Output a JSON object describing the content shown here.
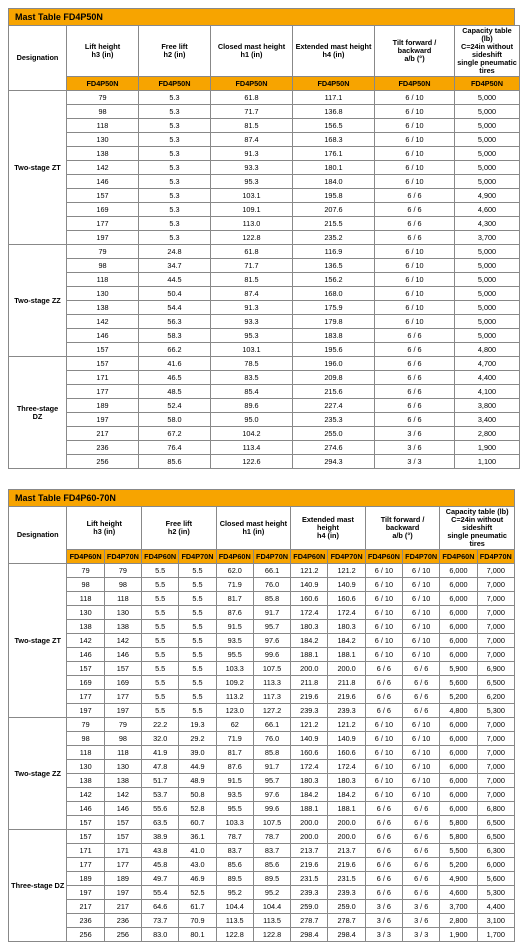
{
  "colors": {
    "accent": "#f7a400",
    "border": "#888888",
    "text": "#000000"
  },
  "table1": {
    "title": "Mast Table  FD4P50N",
    "headers": [
      "Designation",
      "Lift height\nh3 (in)",
      "Free lift\nh2 (in)",
      "Closed mast height\nh1 (in)",
      "Extended mast height\nh4 (in)",
      "Tilt forward / backward\na/b (°)",
      "Capacity table (lb)\nC=24in without sideshift\nsingle pneumatic tires"
    ],
    "model": "FD4P50N",
    "groups": [
      {
        "name": "Two-stage ZT",
        "rows": [
          [
            "79",
            "5.3",
            "61.8",
            "117.1",
            "6 / 10",
            "5,000"
          ],
          [
            "98",
            "5.3",
            "71.7",
            "136.8",
            "6 / 10",
            "5,000"
          ],
          [
            "118",
            "5.3",
            "81.5",
            "156.5",
            "6 / 10",
            "5,000"
          ],
          [
            "130",
            "5.3",
            "87.4",
            "168.3",
            "6 / 10",
            "5,000"
          ],
          [
            "138",
            "5.3",
            "91.3",
            "176.1",
            "6 / 10",
            "5,000"
          ],
          [
            "142",
            "5.3",
            "93.3",
            "180.1",
            "6 / 10",
            "5,000"
          ],
          [
            "146",
            "5.3",
            "95.3",
            "184.0",
            "6 / 10",
            "5,000"
          ],
          [
            "157",
            "5.3",
            "103.1",
            "195.8",
            "6 / 6",
            "4,900"
          ],
          [
            "169",
            "5.3",
            "109.1",
            "207.6",
            "6 / 6",
            "4,600"
          ],
          [
            "177",
            "5.3",
            "113.0",
            "215.5",
            "6 / 6",
            "4,300"
          ],
          [
            "197",
            "5.3",
            "122.8",
            "235.2",
            "6 / 6",
            "3,700"
          ]
        ]
      },
      {
        "name": "Two-stage ZZ",
        "rows": [
          [
            "79",
            "24.8",
            "61.8",
            "116.9",
            "6 / 10",
            "5,000"
          ],
          [
            "98",
            "34.7",
            "71.7",
            "136.5",
            "6 / 10",
            "5,000"
          ],
          [
            "118",
            "44.5",
            "81.5",
            "156.2",
            "6 / 10",
            "5,000"
          ],
          [
            "130",
            "50.4",
            "87.4",
            "168.0",
            "6 / 10",
            "5,000"
          ],
          [
            "138",
            "54.4",
            "91.3",
            "175.9",
            "6 / 10",
            "5,000"
          ],
          [
            "142",
            "56.3",
            "93.3",
            "179.8",
            "6 / 10",
            "5,000"
          ],
          [
            "146",
            "58.3",
            "95.3",
            "183.8",
            "6 / 6",
            "5,000"
          ],
          [
            "157",
            "66.2",
            "103.1",
            "195.6",
            "6 / 6",
            "4,800"
          ]
        ]
      },
      {
        "name": "Three-stage DZ",
        "rows": [
          [
            "157",
            "41.6",
            "78.5",
            "196.0",
            "6 / 6",
            "4,700"
          ],
          [
            "171",
            "46.5",
            "83.5",
            "209.8",
            "6 / 6",
            "4,400"
          ],
          [
            "177",
            "48.5",
            "85.4",
            "215.6",
            "6 / 6",
            "4,100"
          ],
          [
            "189",
            "52.4",
            "89.6",
            "227.4",
            "6 / 6",
            "3,800"
          ],
          [
            "197",
            "58.0",
            "95.0",
            "235.3",
            "6 / 6",
            "3,400"
          ],
          [
            "217",
            "67.2",
            "104.2",
            "255.0",
            "3 / 6",
            "2,800"
          ],
          [
            "236",
            "76.4",
            "113.4",
            "274.6",
            "3 / 6",
            "1,900"
          ],
          [
            "256",
            "85.6",
            "122.6",
            "294.3",
            "3 / 3",
            "1,100"
          ]
        ]
      }
    ]
  },
  "table2": {
    "title": "Mast Table  FD4P60-70N",
    "headers": [
      "Designation",
      "Lift height\nh3 (in)",
      "Free lift\nh2 (in)",
      "Closed mast height\nh1 (in)",
      "Extended mast height\nh4 (in)",
      "Tilt forward / backward\na/b (°)",
      "Capacity table (lb)\nC=24in without sideshift\nsingle pneumatic tires"
    ],
    "models": [
      "FD4P60N",
      "FD4P70N"
    ],
    "groups": [
      {
        "name": "Two-stage ZT",
        "rows": [
          [
            "79",
            "79",
            "5.5",
            "5.5",
            "62.0",
            "66.1",
            "121.2",
            "121.2",
            "6 / 10",
            "6 / 10",
            "6,000",
            "7,000"
          ],
          [
            "98",
            "98",
            "5.5",
            "5.5",
            "71.9",
            "76.0",
            "140.9",
            "140.9",
            "6 / 10",
            "6 / 10",
            "6,000",
            "7,000"
          ],
          [
            "118",
            "118",
            "5.5",
            "5.5",
            "81.7",
            "85.8",
            "160.6",
            "160.6",
            "6 / 10",
            "6 / 10",
            "6,000",
            "7,000"
          ],
          [
            "130",
            "130",
            "5.5",
            "5.5",
            "87.6",
            "91.7",
            "172.4",
            "172.4",
            "6 / 10",
            "6 / 10",
            "6,000",
            "7,000"
          ],
          [
            "138",
            "138",
            "5.5",
            "5.5",
            "91.5",
            "95.7",
            "180.3",
            "180.3",
            "6 / 10",
            "6 / 10",
            "6,000",
            "7,000"
          ],
          [
            "142",
            "142",
            "5.5",
            "5.5",
            "93.5",
            "97.6",
            "184.2",
            "184.2",
            "6 / 10",
            "6 / 10",
            "6,000",
            "7,000"
          ],
          [
            "146",
            "146",
            "5.5",
            "5.5",
            "95.5",
            "99.6",
            "188.1",
            "188.1",
            "6 / 10",
            "6 / 10",
            "6,000",
            "7,000"
          ],
          [
            "157",
            "157",
            "5.5",
            "5.5",
            "103.3",
            "107.5",
            "200.0",
            "200.0",
            "6 / 6",
            "6 / 6",
            "5,900",
            "6,900"
          ],
          [
            "169",
            "169",
            "5.5",
            "5.5",
            "109.2",
            "113.3",
            "211.8",
            "211.8",
            "6 / 6",
            "6 / 6",
            "5,600",
            "6,500"
          ],
          [
            "177",
            "177",
            "5.5",
            "5.5",
            "113.2",
            "117.3",
            "219.6",
            "219.6",
            "6 / 6",
            "6 / 6",
            "5,200",
            "6,200"
          ],
          [
            "197",
            "197",
            "5.5",
            "5.5",
            "123.0",
            "127.2",
            "239.3",
            "239.3",
            "6 / 6",
            "6 / 6",
            "4,800",
            "5,300"
          ]
        ]
      },
      {
        "name": "Two-stage ZZ",
        "rows": [
          [
            "79",
            "79",
            "22.2",
            "19.3",
            "62",
            "66.1",
            "121.2",
            "121.2",
            "6 / 10",
            "6 / 10",
            "6,000",
            "7,000"
          ],
          [
            "98",
            "98",
            "32.0",
            "29.2",
            "71.9",
            "76.0",
            "140.9",
            "140.9",
            "6 / 10",
            "6 / 10",
            "6,000",
            "7,000"
          ],
          [
            "118",
            "118",
            "41.9",
            "39.0",
            "81.7",
            "85.8",
            "160.6",
            "160.6",
            "6 / 10",
            "6 / 10",
            "6,000",
            "7,000"
          ],
          [
            "130",
            "130",
            "47.8",
            "44.9",
            "87.6",
            "91.7",
            "172.4",
            "172.4",
            "6 / 10",
            "6 / 10",
            "6,000",
            "7,000"
          ],
          [
            "138",
            "138",
            "51.7",
            "48.9",
            "91.5",
            "95.7",
            "180.3",
            "180.3",
            "6 / 10",
            "6 / 10",
            "6,000",
            "7,000"
          ],
          [
            "142",
            "142",
            "53.7",
            "50.8",
            "93.5",
            "97.6",
            "184.2",
            "184.2",
            "6 / 10",
            "6 / 10",
            "6,000",
            "7,000"
          ],
          [
            "146",
            "146",
            "55.6",
            "52.8",
            "95.5",
            "99.6",
            "188.1",
            "188.1",
            "6 / 6",
            "6 / 6",
            "6,000",
            "6,800"
          ],
          [
            "157",
            "157",
            "63.5",
            "60.7",
            "103.3",
            "107.5",
            "200.0",
            "200.0",
            "6 / 6",
            "6 / 6",
            "5,800",
            "6,500"
          ]
        ]
      },
      {
        "name": "Three-stage DZ",
        "rows": [
          [
            "157",
            "157",
            "38.9",
            "36.1",
            "78.7",
            "78.7",
            "200.0",
            "200.0",
            "6 / 6",
            "6 / 6",
            "5,800",
            "6,500"
          ],
          [
            "171",
            "171",
            "43.8",
            "41.0",
            "83.7",
            "83.7",
            "213.7",
            "213.7",
            "6 / 6",
            "6 / 6",
            "5,500",
            "6,300"
          ],
          [
            "177",
            "177",
            "45.8",
            "43.0",
            "85.6",
            "85.6",
            "219.6",
            "219.6",
            "6 / 6",
            "6 / 6",
            "5,200",
            "6,000"
          ],
          [
            "189",
            "189",
            "49.7",
            "46.9",
            "89.5",
            "89.5",
            "231.5",
            "231.5",
            "6 / 6",
            "6 / 6",
            "4,900",
            "5,600"
          ],
          [
            "197",
            "197",
            "55.4",
            "52.5",
            "95.2",
            "95.2",
            "239.3",
            "239.3",
            "6 / 6",
            "6 / 6",
            "4,600",
            "5,300"
          ],
          [
            "217",
            "217",
            "64.6",
            "61.7",
            "104.4",
            "104.4",
            "259.0",
            "259.0",
            "3 / 6",
            "3 / 6",
            "3,700",
            "4,400"
          ],
          [
            "236",
            "236",
            "73.7",
            "70.9",
            "113.5",
            "113.5",
            "278.7",
            "278.7",
            "3 / 6",
            "3 / 6",
            "2,800",
            "3,100"
          ],
          [
            "256",
            "256",
            "83.0",
            "80.1",
            "122.8",
            "122.8",
            "298.4",
            "298.4",
            "3 / 3",
            "3 / 3",
            "1,900",
            "1,700"
          ]
        ]
      }
    ]
  }
}
